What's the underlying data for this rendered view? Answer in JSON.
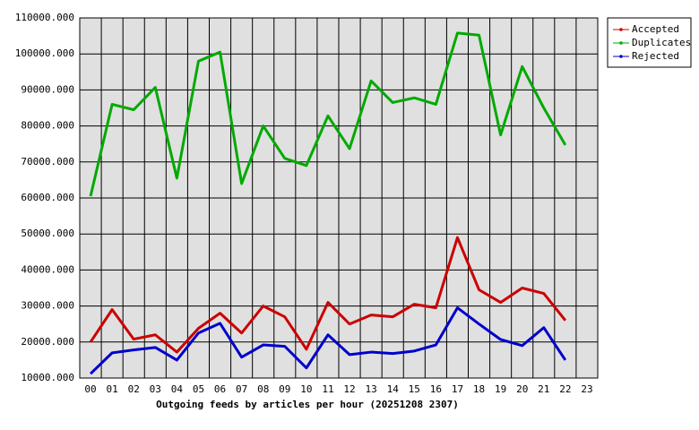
{
  "chart_data": {
    "type": "line",
    "x_label": "Outgoing feeds by articles per hour (20251208 2307)",
    "categories": [
      "00",
      "01",
      "02",
      "03",
      "04",
      "05",
      "06",
      "07",
      "08",
      "09",
      "10",
      "11",
      "12",
      "13",
      "14",
      "15",
      "16",
      "17",
      "18",
      "19",
      "20",
      "21",
      "22",
      "23"
    ],
    "series": [
      {
        "name": "Accepted",
        "color": "#cc0000",
        "values": [
          20000,
          29000,
          20800,
          22000,
          17200,
          23800,
          28000,
          22500,
          30000,
          27000,
          18000,
          31000,
          25000,
          27500,
          27000,
          30500,
          29500,
          49000,
          34500,
          31000,
          35000,
          33500,
          26000,
          null
        ]
      },
      {
        "name": "Duplicates",
        "color": "#00aa00",
        "values": [
          60500,
          86000,
          84500,
          90700,
          65500,
          98000,
          100500,
          64000,
          80000,
          71000,
          69000,
          82800,
          73700,
          92500,
          86500,
          87800,
          86000,
          105800,
          105200,
          77500,
          96500,
          85000,
          74700,
          null
        ]
      },
      {
        "name": "Rejected",
        "color": "#0000cc",
        "values": [
          11200,
          17000,
          17800,
          18500,
          15000,
          22500,
          25200,
          15800,
          19200,
          18800,
          12800,
          22000,
          16500,
          17200,
          16800,
          17500,
          19200,
          29500,
          25000,
          20700,
          19000,
          24000,
          15000,
          null
        ]
      }
    ],
    "ylim": [
      10000,
      110000
    ],
    "yticks": [
      {
        "value": 10000,
        "label": "10000.000"
      },
      {
        "value": 20000,
        "label": "20000.000"
      },
      {
        "value": 30000,
        "label": "30000.000"
      },
      {
        "value": 40000,
        "label": "40000.000"
      },
      {
        "value": 50000,
        "label": "50000.000"
      },
      {
        "value": 60000,
        "label": "60000.000"
      },
      {
        "value": 70000,
        "label": "70000.000"
      },
      {
        "value": 80000,
        "label": "80000.000"
      },
      {
        "value": 90000,
        "label": "90000.000"
      },
      {
        "value": 100000,
        "label": "100000.000"
      },
      {
        "value": 110000,
        "label": "110000.000"
      }
    ],
    "grid": true,
    "legend": "outside-right"
  }
}
